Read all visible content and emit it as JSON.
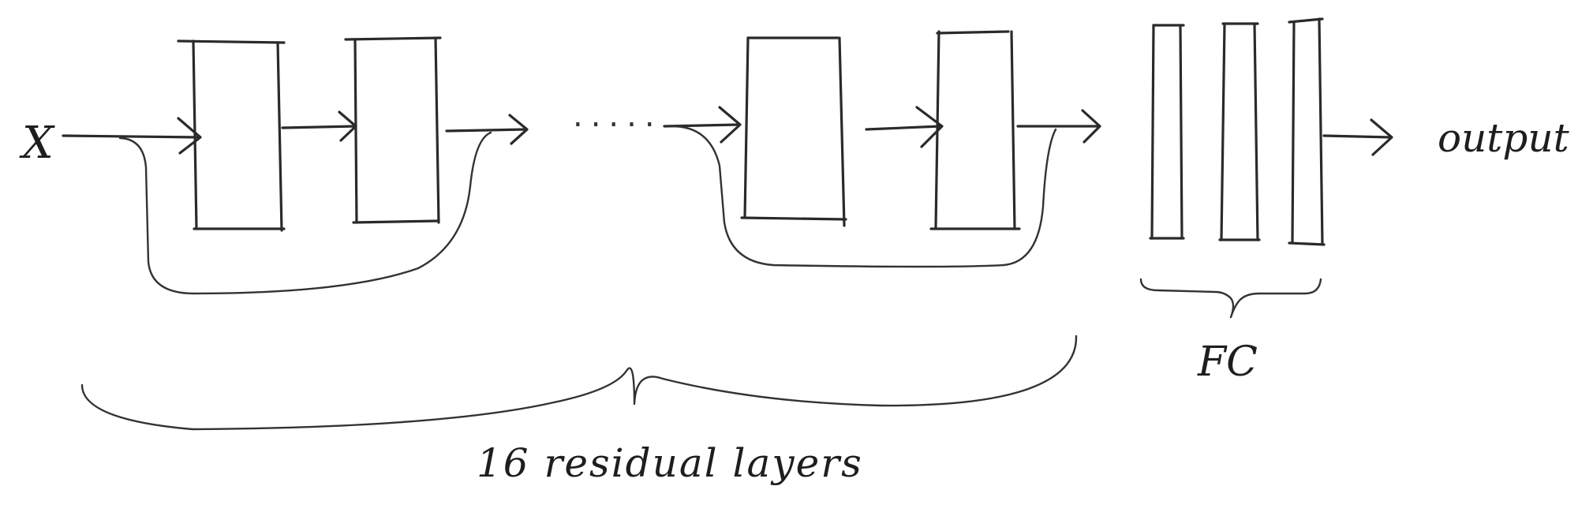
{
  "input_label": "X",
  "output_label": "output",
  "ellipsis": ".....",
  "fc_label": "FC",
  "residual_group_label": "16 residual layers"
}
